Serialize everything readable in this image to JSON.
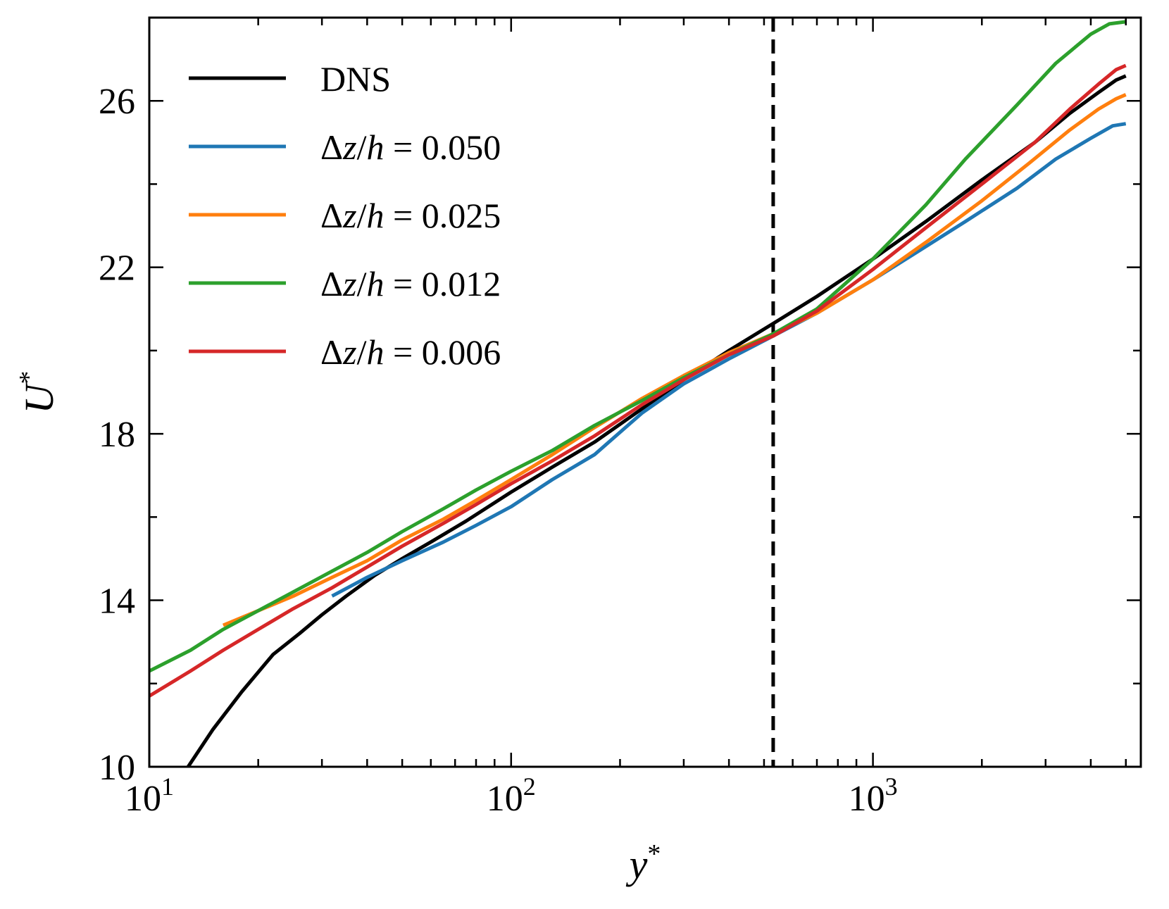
{
  "chart_data": {
    "type": "line",
    "title": "",
    "xlabel": "y*",
    "ylabel": "U*",
    "x_scale": "log",
    "xlim": [
      10,
      5500
    ],
    "ylim": [
      10,
      28
    ],
    "x_ticks": [
      {
        "value": 10,
        "base": "10",
        "exp": "1"
      },
      {
        "value": 100,
        "base": "10",
        "exp": "2"
      },
      {
        "value": 1000,
        "base": "10",
        "exp": "3"
      }
    ],
    "y_ticks": [
      {
        "value": 10,
        "label": "10"
      },
      {
        "value": 14,
        "label": "14"
      },
      {
        "value": 18,
        "label": "18"
      },
      {
        "value": 22,
        "label": "22"
      },
      {
        "value": 26,
        "label": "26"
      }
    ],
    "vertical_line": {
      "x": 530,
      "style": "dashed",
      "color": "#000000"
    },
    "legend_position": "upper-left",
    "series": [
      {
        "name": "DNS",
        "legend_prefix": "DNS",
        "legend_value": "",
        "color": "#000000",
        "x": [
          12.8,
          15,
          18,
          22,
          26,
          30,
          35,
          42,
          50,
          60,
          75,
          100,
          130,
          170,
          230,
          300,
          400,
          530,
          700,
          1000,
          1400,
          2000,
          2800,
          3500,
          4200,
          4700,
          5000
        ],
        "y": [
          10.0,
          10.9,
          11.8,
          12.7,
          13.2,
          13.65,
          14.1,
          14.6,
          15.0,
          15.4,
          15.9,
          16.6,
          17.2,
          17.8,
          18.6,
          19.3,
          20.0,
          20.65,
          21.3,
          22.2,
          23.1,
          24.1,
          25.0,
          25.7,
          26.2,
          26.5,
          26.6
        ]
      },
      {
        "name": "Δz/h = 0.050",
        "legend_prefix": "Δz/h = ",
        "legend_value": "0.050",
        "color": "#1f77b4",
        "x": [
          32,
          40,
          50,
          65,
          80,
          100,
          130,
          170,
          230,
          300,
          400,
          530,
          700,
          1000,
          1400,
          1800,
          2500,
          3200,
          4000,
          4600,
          5000
        ],
        "y": [
          14.1,
          14.55,
          14.95,
          15.4,
          15.8,
          16.25,
          16.9,
          17.5,
          18.5,
          19.2,
          19.8,
          20.35,
          20.9,
          21.7,
          22.5,
          23.1,
          23.9,
          24.6,
          25.1,
          25.4,
          25.45
        ]
      },
      {
        "name": "Δz/h = 0.025",
        "legend_prefix": "Δz/h = ",
        "legend_value": "0.025",
        "color": "#ff7f0e",
        "x": [
          16,
          20,
          25,
          32,
          40,
          50,
          65,
          80,
          100,
          130,
          170,
          230,
          300,
          400,
          530,
          700,
          1000,
          1400,
          2000,
          2700,
          3500,
          4200,
          4700,
          5000
        ],
        "y": [
          13.4,
          13.75,
          14.1,
          14.55,
          14.95,
          15.45,
          15.95,
          16.4,
          16.9,
          17.5,
          18.15,
          18.85,
          19.4,
          19.95,
          20.4,
          20.9,
          21.7,
          22.6,
          23.6,
          24.5,
          25.3,
          25.8,
          26.05,
          26.15
        ]
      },
      {
        "name": "Δz/h = 0.012",
        "legend_prefix": "Δz/h = ",
        "legend_value": "0.012",
        "color": "#2ca02c",
        "x": [
          10,
          13,
          16,
          20,
          25,
          32,
          40,
          50,
          65,
          80,
          100,
          130,
          170,
          230,
          300,
          400,
          530,
          700,
          1000,
          1400,
          1800,
          2500,
          3200,
          4000,
          4500,
          5000
        ],
        "y": [
          12.3,
          12.8,
          13.3,
          13.75,
          14.2,
          14.7,
          15.15,
          15.65,
          16.2,
          16.65,
          17.1,
          17.6,
          18.2,
          18.8,
          19.35,
          19.9,
          20.4,
          21.0,
          22.2,
          23.5,
          24.6,
          25.9,
          26.9,
          27.6,
          27.85,
          27.9
        ]
      },
      {
        "name": "Δz/h = 0.006",
        "legend_prefix": "Δz/h = ",
        "legend_value": "0.006",
        "color": "#d62728",
        "x": [
          10,
          13,
          16,
          20,
          25,
          32,
          40,
          50,
          65,
          80,
          100,
          130,
          170,
          230,
          300,
          400,
          530,
          700,
          1000,
          1400,
          2000,
          2800,
          3500,
          4200,
          4700,
          5000
        ],
        "y": [
          11.7,
          12.3,
          12.8,
          13.3,
          13.8,
          14.3,
          14.8,
          15.3,
          15.85,
          16.3,
          16.8,
          17.35,
          17.95,
          18.7,
          19.3,
          19.9,
          20.35,
          20.95,
          21.95,
          22.95,
          24.0,
          25.0,
          25.8,
          26.4,
          26.75,
          26.85
        ]
      }
    ]
  }
}
